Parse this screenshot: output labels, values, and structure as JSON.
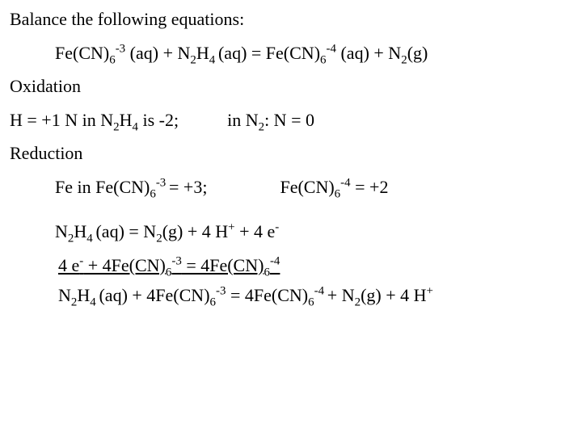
{
  "title": "Balance the following equations:",
  "eq_main": {
    "part1": "Fe(CN)",
    "sub1": "6",
    "sup1": "-3",
    "aq1": " (aq)   +  N",
    "sub2": "2",
    "part3": "H",
    "sub3": "4 ",
    "aq2": "(aq)   =   Fe(CN)",
    "sub4": "6",
    "sup4": "-4",
    "aq3": " (aq)  + N",
    "sub5": "2",
    "g": "(g)"
  },
  "oxidation_label": "Oxidation",
  "ox_line": {
    "p1": "H = +1 N in N",
    "s1": "2",
    "p2": "H",
    "s2": "4",
    "p3": " is -2;",
    "p4": "in N",
    "s3": "2",
    "p5": ": N = 0"
  },
  "reduction_label": "Reduction",
  "red_line": {
    "p1": "Fe in Fe(CN)",
    "s1": "6",
    "sup1": "-3 ",
    "p2": "= +3;",
    "p3": "Fe(CN)",
    "s2": "6",
    "sup2": "-4",
    "p4": "  = +2"
  },
  "half1": {
    "p1": "N",
    "s1": "2",
    "p2": "H",
    "s2": "4 ",
    "p3": "(aq)   =   N",
    "s3": "2",
    "p4": "(g) + 4 H",
    "sup1": "+",
    "p5": " + 4 e",
    "sup2": "-"
  },
  "half2": {
    "p1": "4 e",
    "sup1": "-",
    "p2": "  + 4Fe(CN)",
    "s1": "6",
    "sup2": "-3",
    "p3": " =  4Fe(CN)",
    "s2": "6",
    "sup3": "-4"
  },
  "final": {
    "p1": "N",
    "s1": "2",
    "p2": "H",
    "s2": "4 ",
    "p3": "(aq) + 4Fe(CN)",
    "s3": "6",
    "sup1": "-3",
    "p4": " =  4Fe(CN)",
    "s4": "6",
    "sup2": "-4 ",
    "p5": "+   N",
    "s5": "2",
    "p6": "(g) + 4 H",
    "sup3": "+"
  },
  "colors": {
    "text": "#000000",
    "background": "#ffffff"
  },
  "fonts": {
    "family": "Times New Roman",
    "size_pt": 22
  }
}
